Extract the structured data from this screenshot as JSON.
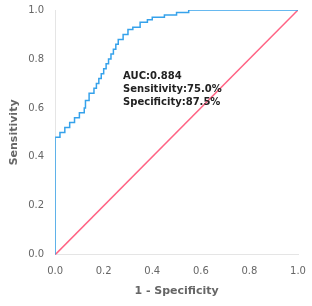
{
  "chart_data": {
    "type": "line",
    "xlabel": "1 - Specificity",
    "ylabel": "Sensitivity",
    "xlim": [
      0.0,
      1.0
    ],
    "ylim": [
      0.0,
      1.0
    ],
    "xticks": [
      {
        "value": 0.0,
        "label": "0.0"
      },
      0.2,
      0.4,
      0.6,
      0.8,
      {
        "value": 1.0,
        "label": "1.0"
      }
    ],
    "yticks": [
      {
        "value": 0.0,
        "label": "0.0"
      },
      0.2,
      0.4,
      0.6,
      0.8,
      {
        "value": 1.0,
        "label": "1.0"
      }
    ],
    "grid": false,
    "annotations": [
      {
        "text": "AUC:0.884\nSensitivity:75.0%\nSpecificity:87.5%",
        "x": 0.28,
        "y": 0.75
      }
    ],
    "series": [
      {
        "x": [
          0.0,
          0.0,
          0.0,
          0.0,
          0.0,
          0.02,
          0.02,
          0.04,
          0.04,
          0.06,
          0.06,
          0.08,
          0.08,
          0.1,
          0.1,
          0.12,
          0.12,
          0.125,
          0.125,
          0.14,
          0.14,
          0.16,
          0.16,
          0.17,
          0.17,
          0.18,
          0.18,
          0.19,
          0.19,
          0.2,
          0.2,
          0.21,
          0.21,
          0.22,
          0.22,
          0.23,
          0.23,
          0.24,
          0.24,
          0.25,
          0.25,
          0.26,
          0.26,
          0.28,
          0.28,
          0.3,
          0.3,
          0.32,
          0.32,
          0.35,
          0.35,
          0.38,
          0.38,
          0.4,
          0.4,
          0.45,
          0.45,
          0.5,
          0.5,
          0.55,
          0.55,
          0.6,
          0.6,
          0.7,
          0.7,
          0.8,
          0.8,
          1.0
        ],
        "values": [
          0.0,
          0.0,
          0.0,
          0.48,
          0.48,
          0.48,
          0.5,
          0.5,
          0.52,
          0.52,
          0.54,
          0.54,
          0.56,
          0.56,
          0.58,
          0.58,
          0.6,
          0.6,
          0.63,
          0.63,
          0.66,
          0.66,
          0.68,
          0.68,
          0.7,
          0.7,
          0.72,
          0.72,
          0.74,
          0.74,
          0.76,
          0.76,
          0.78,
          0.78,
          0.8,
          0.8,
          0.82,
          0.82,
          0.84,
          0.84,
          0.86,
          0.86,
          0.88,
          0.88,
          0.9,
          0.9,
          0.92,
          0.92,
          0.93,
          0.93,
          0.95,
          0.95,
          0.96,
          0.96,
          0.97,
          0.97,
          0.98,
          0.98,
          0.99,
          0.99,
          1.0,
          1.0,
          1.0,
          1.0,
          1.0,
          1.0,
          1.0,
          1.0
        ]
      },
      {
        "x": [
          0,
          1
        ],
        "values": [
          0,
          1
        ]
      }
    ]
  }
}
